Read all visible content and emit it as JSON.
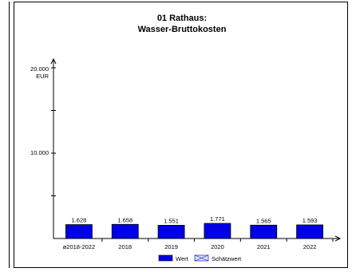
{
  "chart_data": {
    "type": "bar",
    "title_line1": "01 Rathaus:",
    "title_line2": "Wasser-Bruttokosten",
    "ylabel": "EUR",
    "ylim": [
      0,
      20000
    ],
    "y_tick_labels": [
      "20.000",
      "10.000"
    ],
    "categories": [
      "ø2018-2022",
      "2018",
      "2019",
      "2020",
      "2021",
      "2022"
    ],
    "series": [
      {
        "name": "Wert",
        "values": [
          1628,
          1658,
          1551,
          1771,
          1565,
          1593
        ],
        "value_labels": [
          "1.628",
          "1.658",
          "1.551",
          "1.771",
          "1.565",
          "1.593"
        ]
      }
    ],
    "legend": [
      {
        "label": "Wert",
        "color": "#0000e6"
      },
      {
        "label": "Schätzwert",
        "color": "#d8e0ff"
      }
    ],
    "bar_color": "#0000e6",
    "grid": false,
    "legend_position": "bottom"
  }
}
